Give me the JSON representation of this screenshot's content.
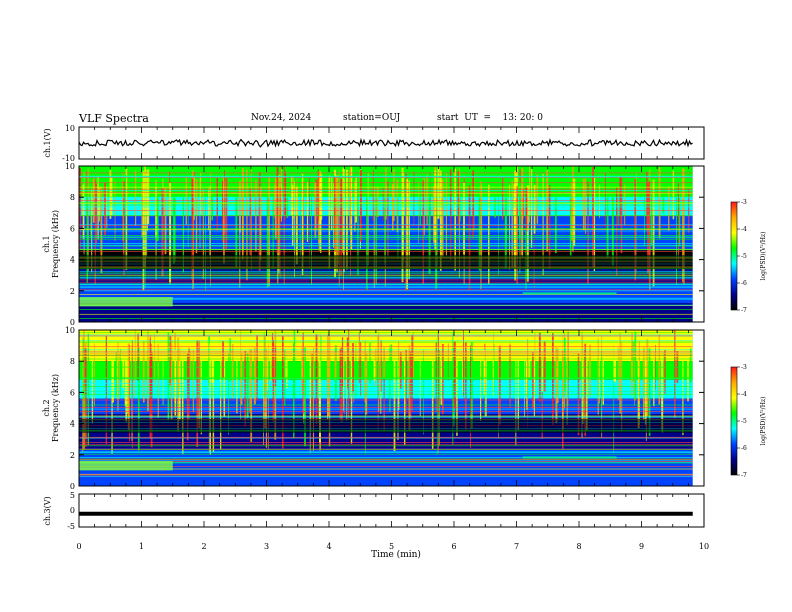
{
  "header": {
    "title": "VLF Spectra",
    "date": "Nov.24, 2024",
    "station": "station=OUJ",
    "start": "start  UT  =    13: 20: 0"
  },
  "panels": {
    "ch1_wave": {
      "ylabel": "ch.1(V)",
      "yticks": [
        "10",
        "-10"
      ]
    },
    "ch1_spec": {
      "ylabel1": "ch.1",
      "ylabel2": "Frequency  (kHz)",
      "yticks": [
        "10",
        "8",
        "6",
        "4",
        "2",
        "0"
      ]
    },
    "ch2_spec": {
      "ylabel1": "ch.2",
      "ylabel2": "Frequency  (kHz)",
      "yticks": [
        "10",
        "8",
        "6",
        "4",
        "2",
        "0"
      ]
    },
    "ch3_wave": {
      "ylabel": "ch.3(V)",
      "yticks": [
        "5",
        "0",
        "-5"
      ]
    }
  },
  "colorbar": {
    "label": "log(PSD)(V²/Hz)",
    "ticks": [
      "-3",
      "-4",
      "-5",
      "-6",
      "-7"
    ],
    "stops": [
      "#ff1a1a",
      "#ffaa00",
      "#ffff00",
      "#00ff00",
      "#00ffff",
      "#0044ff",
      "#00008b",
      "#000000"
    ]
  },
  "xaxis": {
    "label": "Time  (min)",
    "ticks": [
      "0",
      "1",
      "2",
      "3",
      "4",
      "5",
      "6",
      "7",
      "8",
      "9",
      "10"
    ]
  },
  "chart_data": {
    "type": "heatmap",
    "title": "VLF Spectra",
    "xlabel": "Time  (min)",
    "xlim": [
      0,
      10
    ],
    "data_extent_min": 9.82,
    "panels": [
      {
        "name": "ch.1(V)",
        "kind": "waveform",
        "ylim": [
          -10,
          10
        ],
        "level": 0
      },
      {
        "name": "ch.1",
        "kind": "spectrogram",
        "ylabel": "Frequency  (kHz)",
        "ylim": [
          0,
          10
        ],
        "color_scale": "log(PSD)(V²/Hz)",
        "clim": [
          -7,
          -3
        ]
      },
      {
        "name": "ch.2",
        "kind": "spectrogram",
        "ylabel": "Frequency  (kHz)",
        "ylim": [
          0,
          10
        ],
        "color_scale": "log(PSD)(V²/Hz)",
        "clim": [
          -7,
          -3
        ]
      },
      {
        "name": "ch.3(V)",
        "kind": "waveform",
        "ylim": [
          -5,
          5
        ],
        "level": -1
      }
    ]
  }
}
